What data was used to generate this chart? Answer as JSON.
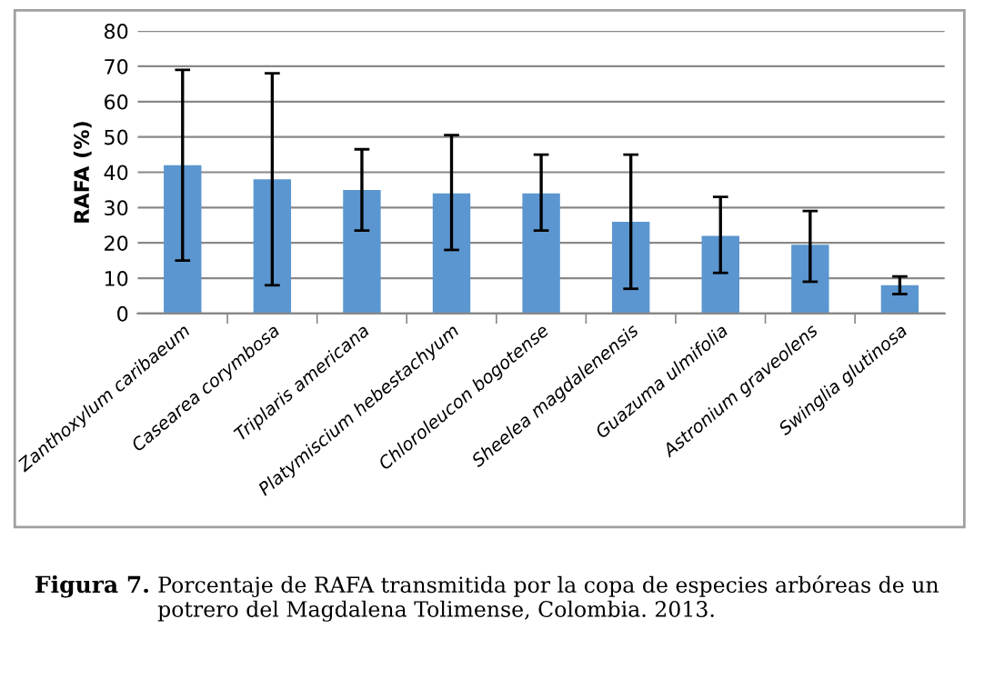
{
  "chart_data": {
    "type": "bar",
    "ylabel": "RAFA (%)",
    "categories": [
      "Zanthoxylum caribaeum",
      "Casearea corymbosa",
      "Triplaris americana",
      "Platymiscium hebestachyum",
      "Chloroleucon bogotense",
      "Sheelea magdalenensis",
      "Guazuma ulmifolia",
      "Astronium graveolens",
      "Swinglia glutinosa"
    ],
    "values": [
      42,
      38,
      35,
      34,
      34,
      26,
      22,
      19.5,
      8
    ],
    "errors": [
      [
        15,
        69
      ],
      [
        8,
        68
      ],
      [
        23.5,
        46.5
      ],
      [
        18,
        50.5
      ],
      [
        23.5,
        45
      ],
      [
        7,
        45
      ],
      [
        11.5,
        33
      ],
      [
        9,
        29
      ],
      [
        5.5,
        10.5
      ]
    ],
    "color": "#5b96d0",
    "ylim": [
      0,
      80
    ],
    "yticks": [
      0,
      10,
      20,
      30,
      40,
      50,
      60,
      70,
      80
    ],
    "grid": "y",
    "annotations": [
      "Figura 7.",
      "Porcentaje de RAFA transmitida por la copa de especies arbóreas de un potrero del Magdalena Tolimense, Colombia. 2013."
    ]
  }
}
